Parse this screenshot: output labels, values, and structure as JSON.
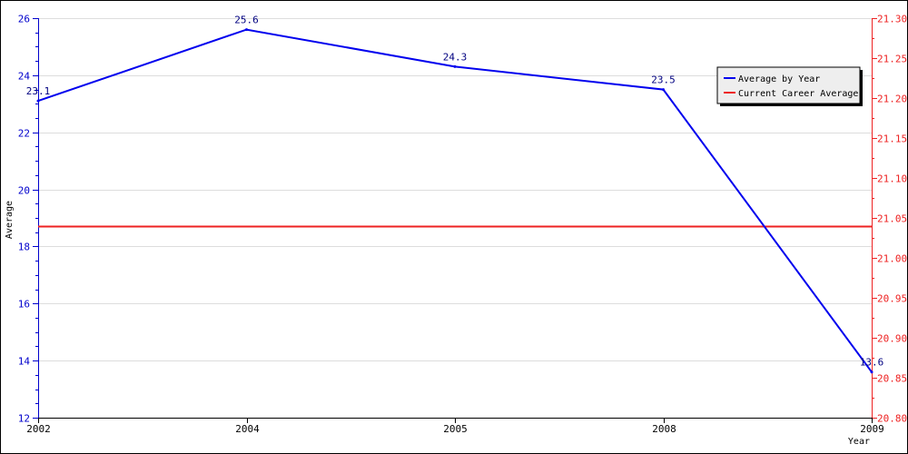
{
  "chart_data": {
    "type": "line",
    "xlabel": "Year",
    "ylabel": "Average",
    "categories": [
      "2002",
      "2004",
      "2005",
      "2008",
      "2009"
    ],
    "y_left": {
      "range": [
        12,
        26
      ],
      "ticks": [
        "12",
        "14",
        "16",
        "18",
        "20",
        "22",
        "24",
        "26"
      ],
      "color": "#0000cc"
    },
    "y_right": {
      "range": [
        20.8,
        21.3
      ],
      "ticks": [
        "20.80",
        "20.85",
        "20.90",
        "20.95",
        "21.00",
        "21.05",
        "21.10",
        "21.15",
        "21.20",
        "21.25",
        "21.30"
      ],
      "color": "#ee2222"
    },
    "grid": true,
    "legend_position": "top-right",
    "series": [
      {
        "name": "Average by Year",
        "axis": "left",
        "color": "#0000ee",
        "values": [
          23.1,
          25.6,
          24.3,
          23.5,
          13.6
        ],
        "labels": [
          "23.1",
          "25.6",
          "24.3",
          "23.5",
          "13.6"
        ]
      },
      {
        "name": "Current Career Average",
        "axis": "right",
        "color": "#ee2222",
        "value": 21.04
      }
    ]
  }
}
